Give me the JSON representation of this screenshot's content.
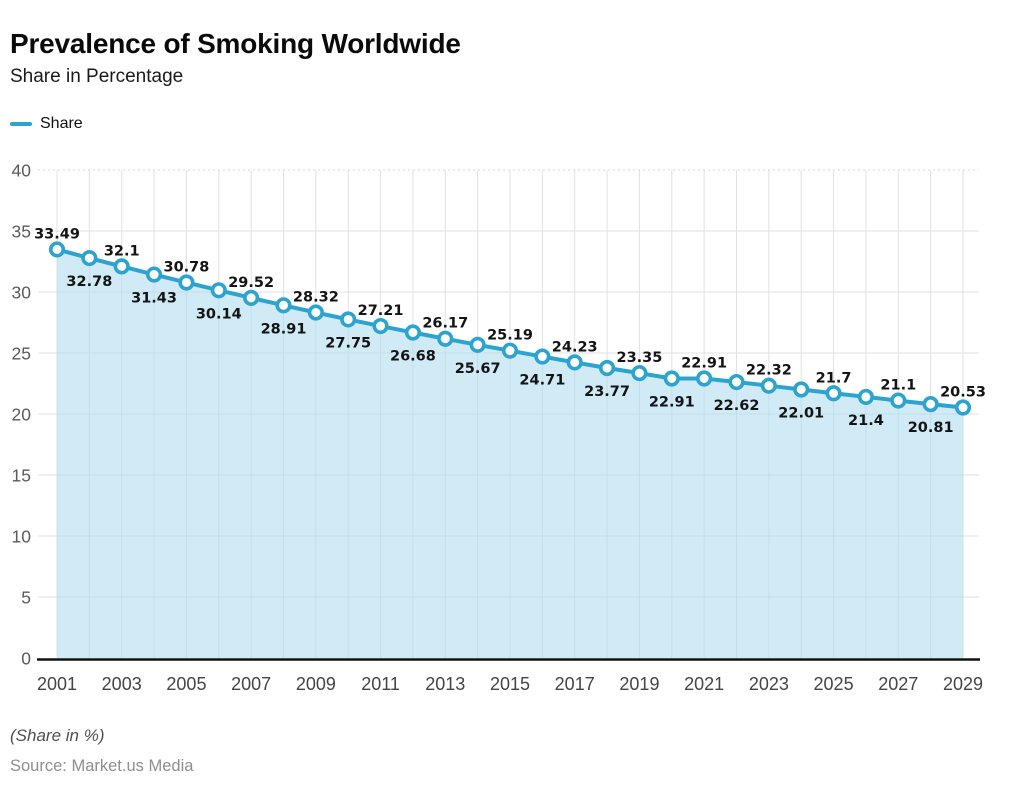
{
  "page": {
    "title": "Prevalence of Smoking Worldwide",
    "subtitle": "Share in Percentage",
    "footnote": "(Share in %)",
    "source": "Source: Market.us Media"
  },
  "legend": {
    "position": "top-left",
    "items": [
      {
        "label": "Share",
        "color": "#2da3cf"
      }
    ]
  },
  "chart_data": {
    "type": "area",
    "title": "Prevalence of Smoking Worldwide",
    "subtitle": "Share in Percentage",
    "xlabel": "",
    "ylabel": "Share in Percentage",
    "x": [
      2001,
      2002,
      2003,
      2004,
      2005,
      2006,
      2007,
      2008,
      2009,
      2010,
      2011,
      2012,
      2013,
      2014,
      2015,
      2016,
      2017,
      2018,
      2019,
      2020,
      2021,
      2022,
      2023,
      2024,
      2025,
      2026,
      2027,
      2028,
      2029
    ],
    "series": [
      {
        "name": "Share",
        "values": [
          33.49,
          32.78,
          32.1,
          31.43,
          30.78,
          30.14,
          29.52,
          28.91,
          28.32,
          27.75,
          27.21,
          26.68,
          26.17,
          25.67,
          25.19,
          24.71,
          24.23,
          23.77,
          23.35,
          22.91,
          22.91,
          22.62,
          22.32,
          22.01,
          21.7,
          21.4,
          21.1,
          20.81,
          20.53
        ]
      }
    ],
    "x_tick_labels": [
      "2001",
      "2003",
      "2005",
      "2007",
      "2009",
      "2011",
      "2013",
      "2015",
      "2017",
      "2019",
      "2021",
      "2023",
      "2025",
      "2027",
      "2029"
    ],
    "x_tick_every": 2,
    "y_ticks": [
      0,
      5,
      10,
      15,
      20,
      25,
      30,
      35,
      40
    ],
    "ylim": [
      0,
      40
    ],
    "grid": true,
    "data_labels": true,
    "legend_position": "top-left",
    "colors": {
      "line": "#2da3cf",
      "marker_stroke": "#2da3cf",
      "marker_fill": "#ffffff",
      "area_fill": "#a9dbef",
      "area_opacity": 0.55,
      "grid": "#e2e2e2",
      "grid_top_dashed": "#d8d8d8",
      "axis": "#111111",
      "x_tick_text": "#454545",
      "y_tick_text": "#5a5a5a",
      "data_label_text": "#141414"
    }
  }
}
